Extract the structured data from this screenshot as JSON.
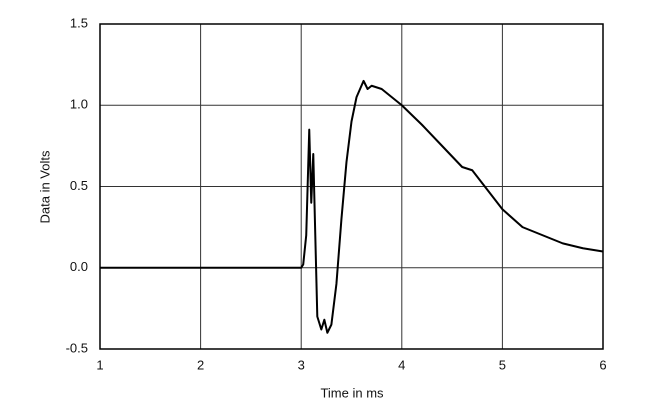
{
  "chart_data": {
    "type": "line",
    "x_label": "Time in ms",
    "y_label": "Data in Volts",
    "x": [
      1,
      2,
      3,
      3.02,
      3.05,
      3.08,
      3.1,
      3.12,
      3.14,
      3.16,
      3.2,
      3.23,
      3.26,
      3.3,
      3.35,
      3.4,
      3.45,
      3.5,
      3.55,
      3.62,
      3.66,
      3.7,
      3.8,
      3.9,
      4,
      4.2,
      4.4,
      4.6,
      4.7,
      4.8,
      5,
      5.2,
      5.4,
      5.6,
      5.8,
      6
    ],
    "series": [
      {
        "color": "#000000",
        "values": [
          0,
          0,
          0,
          0.02,
          0.2,
          0.85,
          0.4,
          0.7,
          0.2,
          -0.3,
          -0.38,
          -0.32,
          -0.4,
          -0.35,
          -0.1,
          0.3,
          0.65,
          0.9,
          1.05,
          1.15,
          1.1,
          1.12,
          1.1,
          1.05,
          1,
          0.88,
          0.75,
          0.62,
          0.6,
          0.52,
          0.36,
          0.25,
          0.2,
          0.15,
          0.12,
          0.1
        ]
      }
    ],
    "xlim": [
      1,
      6
    ],
    "xticks": [
      1,
      2,
      3,
      4,
      5,
      6
    ],
    "ylim": [
      -0.5,
      1.5
    ],
    "yticks": [
      -0.5,
      {
        "value": 0,
        "label": "0.0"
      },
      0.5,
      {
        "value": 1,
        "label": "1.0"
      },
      1.5
    ],
    "grid": true
  }
}
